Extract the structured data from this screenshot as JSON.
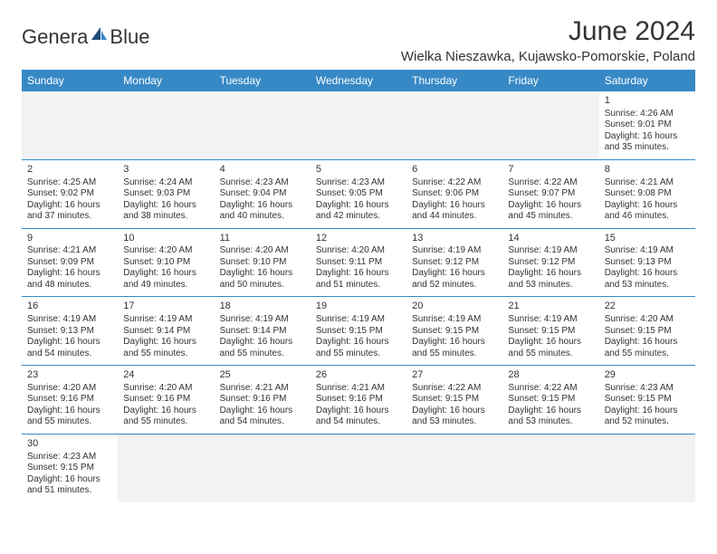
{
  "brand": {
    "part1": "Genera",
    "part2": "Blue"
  },
  "title": "June 2024",
  "location": "Wielka Nieszawka, Kujawsko-Pomorskie, Poland",
  "colors": {
    "header_bg": "#3789c6",
    "header_text": "#ffffff",
    "body_text": "#333333",
    "blank_bg": "#f2f2f2",
    "row_border": "#3789c6",
    "logo_accent": "#3789c6"
  },
  "weekdays": [
    "Sunday",
    "Monday",
    "Tuesday",
    "Wednesday",
    "Thursday",
    "Friday",
    "Saturday"
  ],
  "labels": {
    "sunrise": "Sunrise:",
    "sunset": "Sunset:",
    "daylight": "Daylight:"
  },
  "weeks": [
    [
      null,
      null,
      null,
      null,
      null,
      null,
      {
        "d": "1",
        "sr": "4:26 AM",
        "ss": "9:01 PM",
        "dl": "16 hours and 35 minutes."
      }
    ],
    [
      {
        "d": "2",
        "sr": "4:25 AM",
        "ss": "9:02 PM",
        "dl": "16 hours and 37 minutes."
      },
      {
        "d": "3",
        "sr": "4:24 AM",
        "ss": "9:03 PM",
        "dl": "16 hours and 38 minutes."
      },
      {
        "d": "4",
        "sr": "4:23 AM",
        "ss": "9:04 PM",
        "dl": "16 hours and 40 minutes."
      },
      {
        "d": "5",
        "sr": "4:23 AM",
        "ss": "9:05 PM",
        "dl": "16 hours and 42 minutes."
      },
      {
        "d": "6",
        "sr": "4:22 AM",
        "ss": "9:06 PM",
        "dl": "16 hours and 44 minutes."
      },
      {
        "d": "7",
        "sr": "4:22 AM",
        "ss": "9:07 PM",
        "dl": "16 hours and 45 minutes."
      },
      {
        "d": "8",
        "sr": "4:21 AM",
        "ss": "9:08 PM",
        "dl": "16 hours and 46 minutes."
      }
    ],
    [
      {
        "d": "9",
        "sr": "4:21 AM",
        "ss": "9:09 PM",
        "dl": "16 hours and 48 minutes."
      },
      {
        "d": "10",
        "sr": "4:20 AM",
        "ss": "9:10 PM",
        "dl": "16 hours and 49 minutes."
      },
      {
        "d": "11",
        "sr": "4:20 AM",
        "ss": "9:10 PM",
        "dl": "16 hours and 50 minutes."
      },
      {
        "d": "12",
        "sr": "4:20 AM",
        "ss": "9:11 PM",
        "dl": "16 hours and 51 minutes."
      },
      {
        "d": "13",
        "sr": "4:19 AM",
        "ss": "9:12 PM",
        "dl": "16 hours and 52 minutes."
      },
      {
        "d": "14",
        "sr": "4:19 AM",
        "ss": "9:12 PM",
        "dl": "16 hours and 53 minutes."
      },
      {
        "d": "15",
        "sr": "4:19 AM",
        "ss": "9:13 PM",
        "dl": "16 hours and 53 minutes."
      }
    ],
    [
      {
        "d": "16",
        "sr": "4:19 AM",
        "ss": "9:13 PM",
        "dl": "16 hours and 54 minutes."
      },
      {
        "d": "17",
        "sr": "4:19 AM",
        "ss": "9:14 PM",
        "dl": "16 hours and 55 minutes."
      },
      {
        "d": "18",
        "sr": "4:19 AM",
        "ss": "9:14 PM",
        "dl": "16 hours and 55 minutes."
      },
      {
        "d": "19",
        "sr": "4:19 AM",
        "ss": "9:15 PM",
        "dl": "16 hours and 55 minutes."
      },
      {
        "d": "20",
        "sr": "4:19 AM",
        "ss": "9:15 PM",
        "dl": "16 hours and 55 minutes."
      },
      {
        "d": "21",
        "sr": "4:19 AM",
        "ss": "9:15 PM",
        "dl": "16 hours and 55 minutes."
      },
      {
        "d": "22",
        "sr": "4:20 AM",
        "ss": "9:15 PM",
        "dl": "16 hours and 55 minutes."
      }
    ],
    [
      {
        "d": "23",
        "sr": "4:20 AM",
        "ss": "9:16 PM",
        "dl": "16 hours and 55 minutes."
      },
      {
        "d": "24",
        "sr": "4:20 AM",
        "ss": "9:16 PM",
        "dl": "16 hours and 55 minutes."
      },
      {
        "d": "25",
        "sr": "4:21 AM",
        "ss": "9:16 PM",
        "dl": "16 hours and 54 minutes."
      },
      {
        "d": "26",
        "sr": "4:21 AM",
        "ss": "9:16 PM",
        "dl": "16 hours and 54 minutes."
      },
      {
        "d": "27",
        "sr": "4:22 AM",
        "ss": "9:15 PM",
        "dl": "16 hours and 53 minutes."
      },
      {
        "d": "28",
        "sr": "4:22 AM",
        "ss": "9:15 PM",
        "dl": "16 hours and 53 minutes."
      },
      {
        "d": "29",
        "sr": "4:23 AM",
        "ss": "9:15 PM",
        "dl": "16 hours and 52 minutes."
      }
    ],
    [
      {
        "d": "30",
        "sr": "4:23 AM",
        "ss": "9:15 PM",
        "dl": "16 hours and 51 minutes."
      },
      null,
      null,
      null,
      null,
      null,
      null
    ]
  ]
}
